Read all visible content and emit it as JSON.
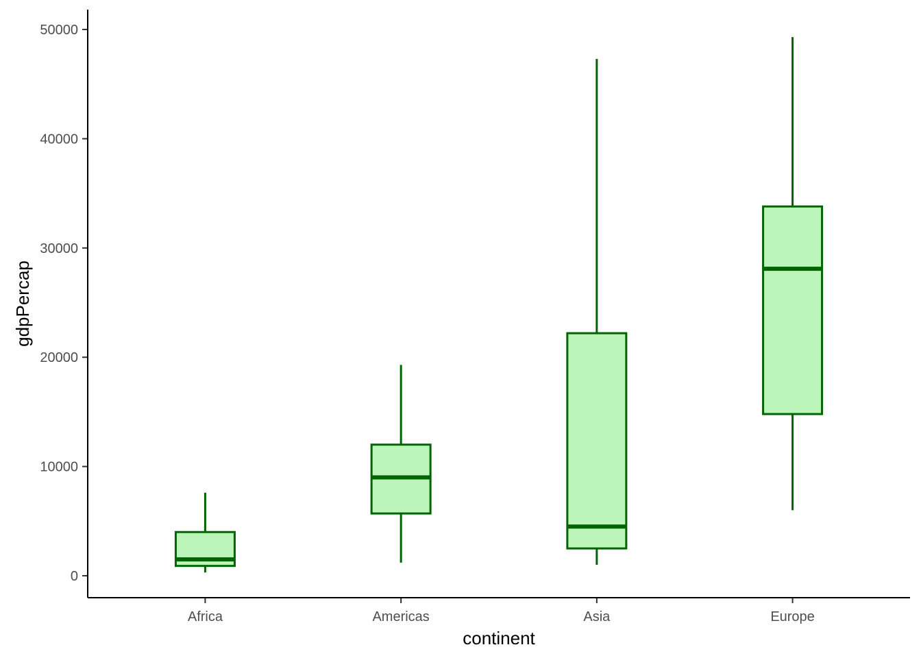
{
  "chart_data": {
    "type": "boxplot",
    "title": "",
    "xlabel": "continent",
    "ylabel": "gdpPercap",
    "ylim": [
      -2000,
      52000
    ],
    "yticks": [
      0,
      10000,
      20000,
      30000,
      40000,
      50000
    ],
    "grid": false,
    "legend": "none",
    "colors": {
      "fill": "#bbf5b9",
      "stroke": "#006400"
    },
    "categories": [
      "Africa",
      "Americas",
      "Asia",
      "Europe"
    ],
    "boxes": [
      {
        "category": "Africa",
        "whisker_low": 300,
        "q1": 900,
        "median": 1500,
        "q3": 4000,
        "whisker_high": 7600
      },
      {
        "category": "Americas",
        "whisker_low": 1200,
        "q1": 5700,
        "median": 9000,
        "q3": 12000,
        "whisker_high": 19300
      },
      {
        "category": "Asia",
        "whisker_low": 1000,
        "q1": 2500,
        "median": 4500,
        "q3": 22200,
        "whisker_high": 47300
      },
      {
        "category": "Europe",
        "whisker_low": 6000,
        "q1": 14800,
        "median": 28100,
        "q3": 33800,
        "whisker_high": 49300
      }
    ]
  }
}
